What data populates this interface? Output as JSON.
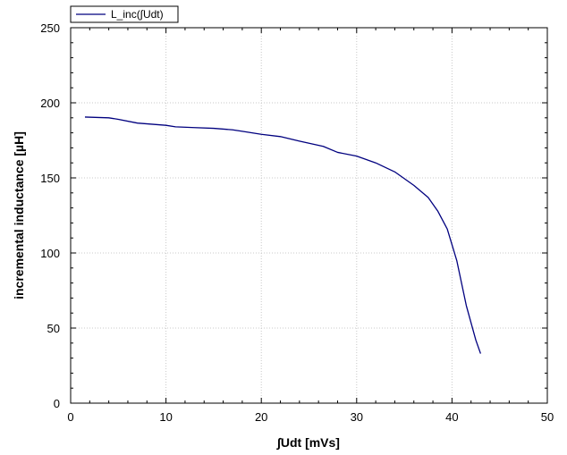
{
  "chart_data": {
    "type": "line",
    "title": "",
    "xlabel": "∫Udt [mVs]",
    "ylabel": "incremental inductance [µH]",
    "xlim": [
      0,
      50
    ],
    "ylim": [
      0,
      250
    ],
    "xticks": [
      0,
      10,
      20,
      30,
      40,
      50
    ],
    "yticks": [
      0,
      50,
      100,
      150,
      200,
      250
    ],
    "grid": true,
    "legend_position": "top-left",
    "series": [
      {
        "name": "L_inc(∫Udt)",
        "color": "#00007f",
        "x": [
          1.5,
          4.0,
          5.0,
          7.0,
          10.0,
          11.0,
          13.0,
          15.0,
          17.0,
          18.0,
          20.0,
          22.0,
          24.0,
          26.5,
          28.0,
          30.0,
          32.0,
          34.0,
          36.0,
          37.5,
          38.5,
          39.5,
          40.5,
          41.5,
          42.5,
          43.0
        ],
        "y": [
          190.5,
          190,
          189,
          186.5,
          185,
          184,
          183.5,
          183,
          182,
          181,
          179,
          177.5,
          174.5,
          171,
          167,
          164.5,
          160,
          154,
          145,
          137,
          128,
          116,
          95,
          65,
          42,
          33
        ]
      }
    ]
  }
}
